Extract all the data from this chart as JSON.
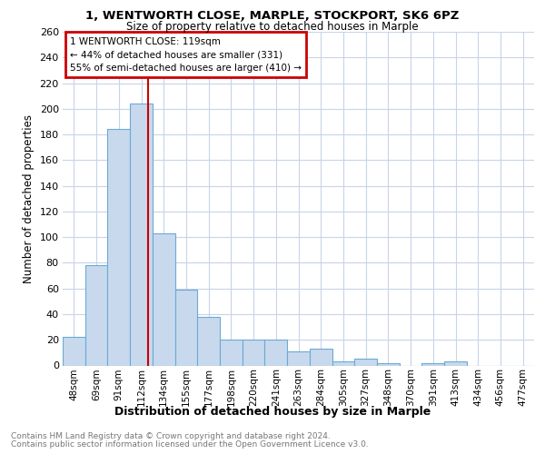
{
  "title1": "1, WENTWORTH CLOSE, MARPLE, STOCKPORT, SK6 6PZ",
  "title2": "Size of property relative to detached houses in Marple",
  "xlabel": "Distribution of detached houses by size in Marple",
  "ylabel": "Number of detached properties",
  "bar_labels": [
    "48sqm",
    "69sqm",
    "91sqm",
    "112sqm",
    "134sqm",
    "155sqm",
    "177sqm",
    "198sqm",
    "220sqm",
    "241sqm",
    "263sqm",
    "284sqm",
    "305sqm",
    "327sqm",
    "348sqm",
    "370sqm",
    "391sqm",
    "413sqm",
    "434sqm",
    "456sqm",
    "477sqm"
  ],
  "bar_values": [
    22,
    78,
    184,
    204,
    103,
    59,
    38,
    20,
    20,
    20,
    11,
    13,
    3,
    5,
    2,
    0,
    2,
    3,
    0,
    0,
    0
  ],
  "bar_color": "#c8d9ee",
  "bar_edge_color": "#6aaad4",
  "annotation_line0": "1 WENTWORTH CLOSE: 119sqm",
  "annotation_line1": "← 44% of detached houses are smaller (331)",
  "annotation_line2": "55% of semi-detached houses are larger (410) →",
  "vline_color": "#cc0000",
  "vline_pos": 3.32,
  "annotation_box_color": "#cc0000",
  "ylim": [
    0,
    260
  ],
  "yticks": [
    0,
    20,
    40,
    60,
    80,
    100,
    120,
    140,
    160,
    180,
    200,
    220,
    240,
    260
  ],
  "footer1": "Contains HM Land Registry data © Crown copyright and database right 2024.",
  "footer2": "Contains public sector information licensed under the Open Government Licence v3.0.",
  "grid_color": "#c8d4e8",
  "plot_bg_color": "#ffffff"
}
